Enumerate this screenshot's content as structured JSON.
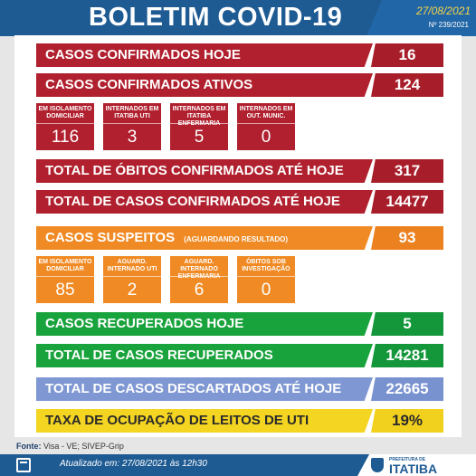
{
  "header": {
    "title": "BOLETIM COVID-19",
    "date": "27/08/2021",
    "bulletin_no": "Nº 239/2021"
  },
  "rows": {
    "confirmed_today": {
      "label": "CASOS CONFIRMADOS HOJE",
      "value": "16"
    },
    "active": {
      "label": "CASOS CONFIRMADOS ATIVOS",
      "value": "124"
    },
    "deaths": {
      "label": "TOTAL DE ÓBITOS CONFIRMADOS ATÉ HOJE",
      "value": "317"
    },
    "total_confirmed": {
      "label": "TOTAL DE CASOS CONFIRMADOS ATÉ HOJE",
      "value": "14477"
    },
    "suspected": {
      "label": "CASOS SUSPEITOS",
      "note": "(AGUARDANDO RESULTADO)",
      "value": "93"
    },
    "recovered_today": {
      "label": "CASOS RECUPERADOS HOJE",
      "value": "5"
    },
    "total_recovered": {
      "label": "TOTAL DE CASOS RECUPERADOS",
      "value": "14281"
    },
    "discarded": {
      "label": "TOTAL DE CASOS DESCARTADOS ATÉ HOJE",
      "value": "22665"
    },
    "icu_occupancy": {
      "label": "TAXA DE OCUPAÇÃO DE LEITOS DE UTI",
      "value": "19%"
    }
  },
  "active_breakdown": [
    {
      "caption": "EM ISOLAMENTO DOMICILIAR",
      "value": "116"
    },
    {
      "caption": "INTERNADOS EM ITATIBA UTI",
      "value": "3"
    },
    {
      "caption": "INTERNADOS EM ITATIBA ENFERMARIA",
      "value": "5"
    },
    {
      "caption": "INTERNADOS EM OUT. MUNIC.",
      "value": "0"
    }
  ],
  "suspected_breakdown": [
    {
      "caption": "EM ISOLAMENTO DOMICILIAR",
      "value": "85"
    },
    {
      "caption": "AGUARD. INTERNADO UTI",
      "value": "2"
    },
    {
      "caption": "AGUARD. INTERNADO ENFERMARIA",
      "value": "6"
    },
    {
      "caption": "ÓBITOS SOB INVESTIGAÇÃO",
      "value": "0"
    }
  ],
  "footer": {
    "source_label": "Fonte:",
    "source_value": "Visa - VE; SIVEP-Grip",
    "updated": "Atualizado em:   27/08/2021  às 12h30",
    "logo_pre": "PREFEITURA DE",
    "logo_name": "ITATIBA"
  },
  "colors": {
    "header_blue": "#1f5b93",
    "red": "#b0202e",
    "orange": "#f08a24",
    "green": "#19a33c",
    "blue": "#7f97d2",
    "yellow": "#f4d521"
  }
}
